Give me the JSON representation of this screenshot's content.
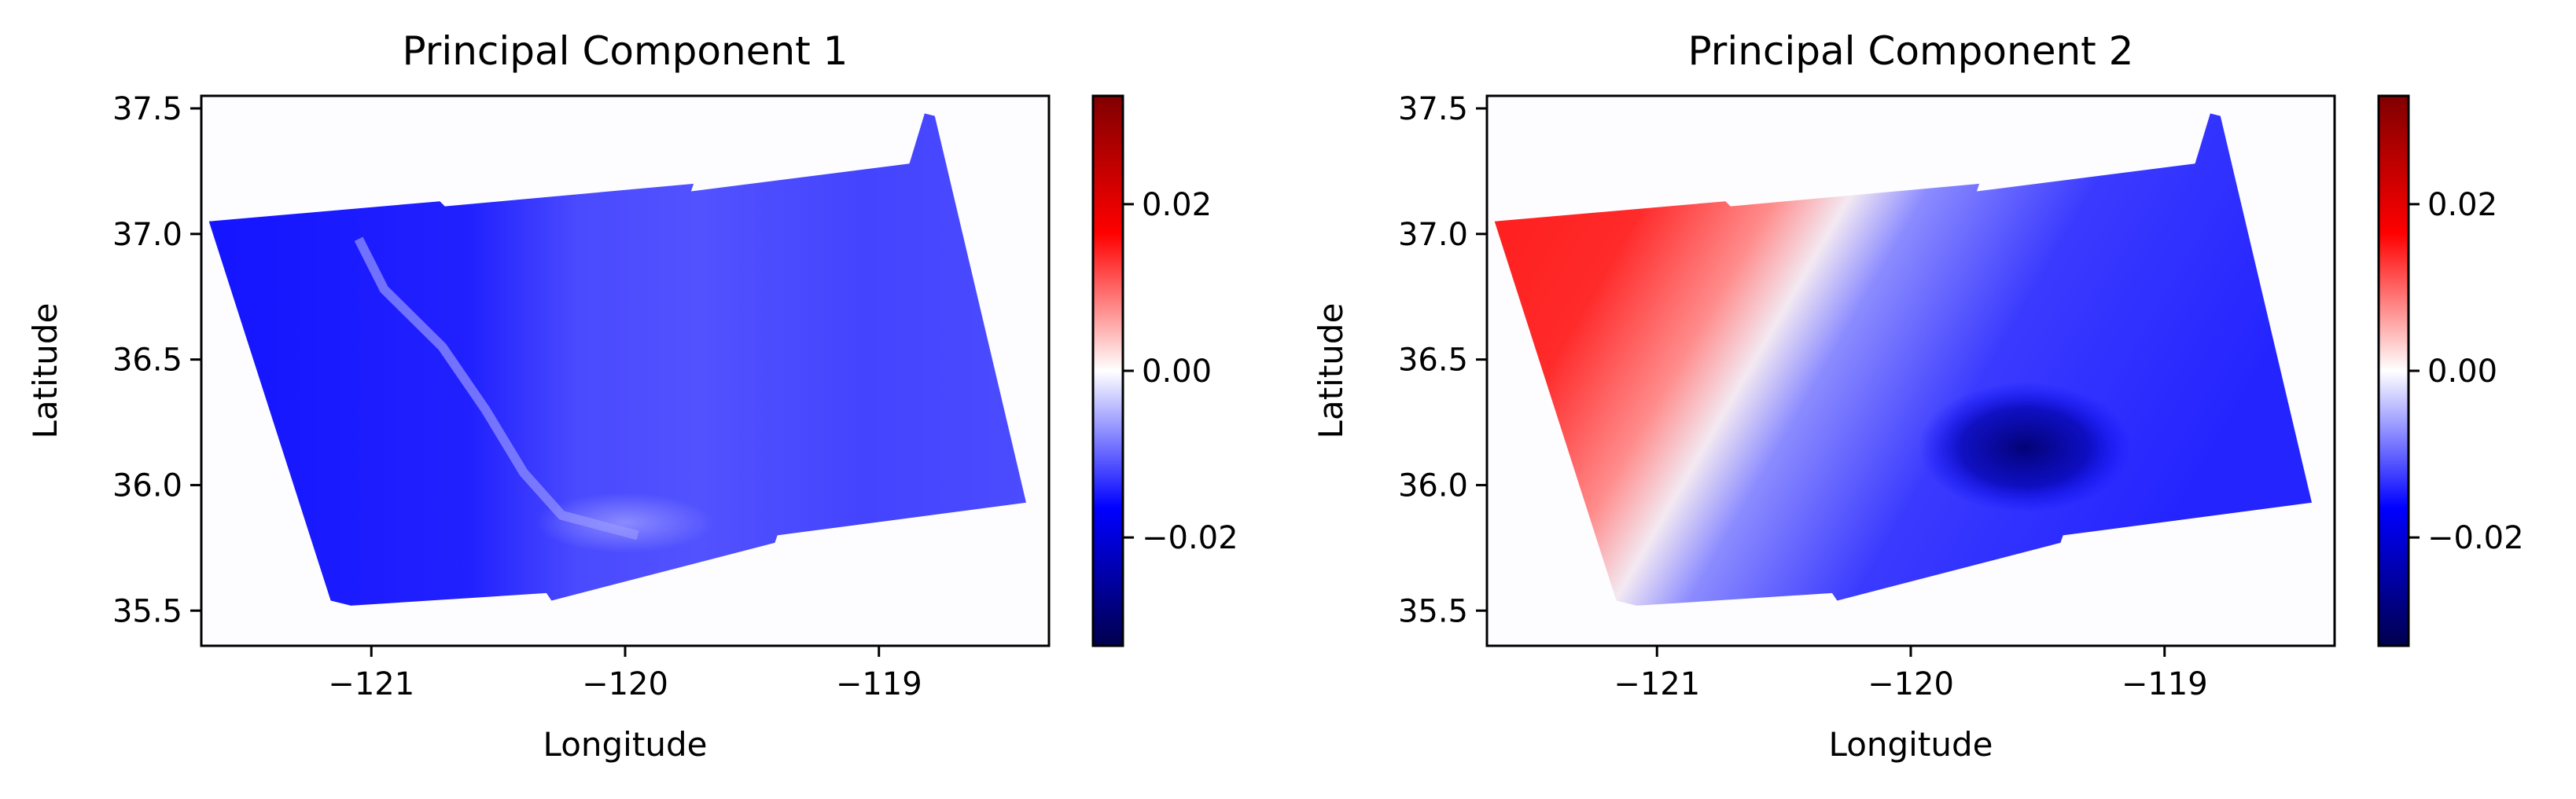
{
  "chart_data": [
    {
      "type": "heatmap",
      "title": "Principal Component 1",
      "xlabel": "Longitude",
      "ylabel": "Latitude",
      "xlim": [
        -121.67,
        -118.33
      ],
      "ylim": [
        35.36,
        37.55
      ],
      "x_ticks": [
        -121,
        -120,
        -119
      ],
      "x_tick_labels": [
        "−121",
        "−120",
        "−119"
      ],
      "y_ticks": [
        35.5,
        36.0,
        36.5,
        37.0,
        37.5
      ],
      "y_tick_labels": [
        "35.5",
        "36.0",
        "36.5",
        "37.0",
        "37.5"
      ],
      "grid": false,
      "colormap": "seismic",
      "colorbar": {
        "vmin": -0.033,
        "vmax": 0.033,
        "ticks": [
          -0.02,
          0.0,
          0.02
        ],
        "tick_labels": [
          "−0.02",
          "0.00",
          "0.02"
        ]
      },
      "footprint": [
        [
          -121.64,
          37.05
        ],
        [
          -120.73,
          37.13
        ],
        [
          -120.71,
          37.11
        ],
        [
          -119.73,
          37.2
        ],
        [
          -119.74,
          37.17
        ],
        [
          -118.88,
          37.28
        ],
        [
          -118.82,
          37.48
        ],
        [
          -118.78,
          37.47
        ],
        [
          -118.42,
          35.93
        ],
        [
          -119.4,
          35.8
        ],
        [
          -119.41,
          35.77
        ],
        [
          -120.29,
          35.54
        ],
        [
          -120.31,
          35.57
        ],
        [
          -121.08,
          35.52
        ],
        [
          -121.16,
          35.54
        ]
      ],
      "description_values": {
        "west_region": -0.022,
        "central_band": -0.013,
        "east_region": -0.017,
        "boundary_features": -0.008
      }
    },
    {
      "type": "heatmap",
      "title": "Principal Component 2",
      "xlabel": "Longitude",
      "ylabel": "Latitude",
      "xlim": [
        -121.67,
        -118.33
      ],
      "ylim": [
        35.36,
        37.55
      ],
      "x_ticks": [
        -121,
        -120,
        -119
      ],
      "x_tick_labels": [
        "−121",
        "−120",
        "−119"
      ],
      "y_ticks": [
        35.5,
        36.0,
        36.5,
        37.0,
        37.5
      ],
      "y_tick_labels": [
        "35.5",
        "36.0",
        "36.5",
        "37.0",
        "37.5"
      ],
      "grid": false,
      "colormap": "seismic",
      "colorbar": {
        "vmin": -0.033,
        "vmax": 0.033,
        "ticks": [
          -0.02,
          0.0,
          0.02
        ],
        "tick_labels": [
          "−0.02",
          "0.00",
          "0.02"
        ]
      },
      "footprint": [
        [
          -121.64,
          37.05
        ],
        [
          -120.73,
          37.13
        ],
        [
          -120.71,
          37.11
        ],
        [
          -119.73,
          37.2
        ],
        [
          -119.74,
          37.17
        ],
        [
          -118.88,
          37.28
        ],
        [
          -118.82,
          37.48
        ],
        [
          -118.78,
          37.47
        ],
        [
          -118.42,
          35.93
        ],
        [
          -119.4,
          35.8
        ],
        [
          -119.41,
          35.77
        ],
        [
          -120.29,
          35.54
        ],
        [
          -120.31,
          35.57
        ],
        [
          -121.08,
          35.52
        ],
        [
          -121.16,
          35.54
        ]
      ],
      "description_values": {
        "west_region": 0.022,
        "transition_zone": 0.004,
        "east_region": -0.014,
        "dark_core": -0.028
      }
    }
  ]
}
